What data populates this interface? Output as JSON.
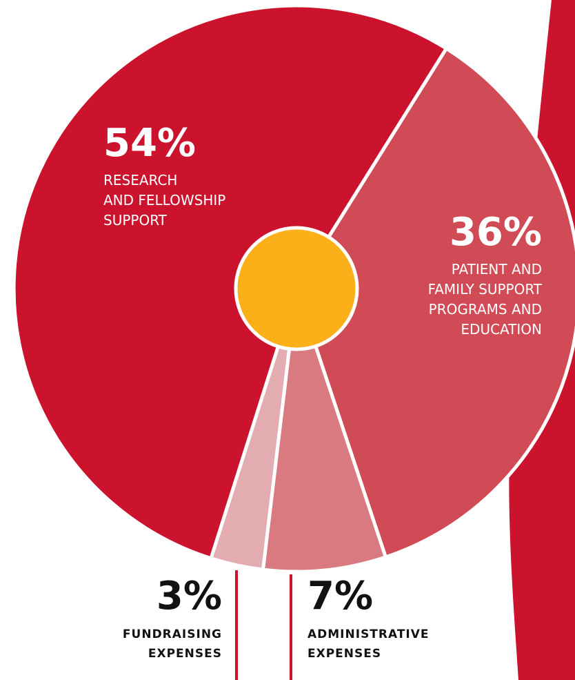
{
  "chart_data": {
    "type": "pie",
    "slices": [
      {
        "label": "RESEARCH AND FELLOWSHIP SUPPORT",
        "value": 54,
        "display": "54%",
        "color": "#cb132e",
        "lines": [
          "RESEARCH",
          "AND FELLOWSHIP",
          "SUPPORT"
        ]
      },
      {
        "label": "PATIENT AND FAMILY SUPPORT PROGRAMS AND EDUCATION",
        "value": 36,
        "display": "36%",
        "color": "#d04b55",
        "lines": [
          "PATIENT AND",
          "FAMILY SUPPORT",
          "PROGRAMS AND",
          "EDUCATION"
        ]
      },
      {
        "label": "ADMINISTRATIVE EXPENSES",
        "value": 7,
        "display": "7%",
        "color": "#d87a80",
        "lines": [
          "ADMINISTRATIVE",
          "EXPENSES"
        ]
      },
      {
        "label": "FUNDRAISING EXPENSES",
        "value": 3,
        "display": "3%",
        "color": "#e2acb0",
        "lines": [
          "FUNDRAISING",
          "EXPENSES"
        ]
      }
    ],
    "center_color": "#fbb01a",
    "accent_color": "#cb132e",
    "title": "",
    "legend": "none"
  }
}
